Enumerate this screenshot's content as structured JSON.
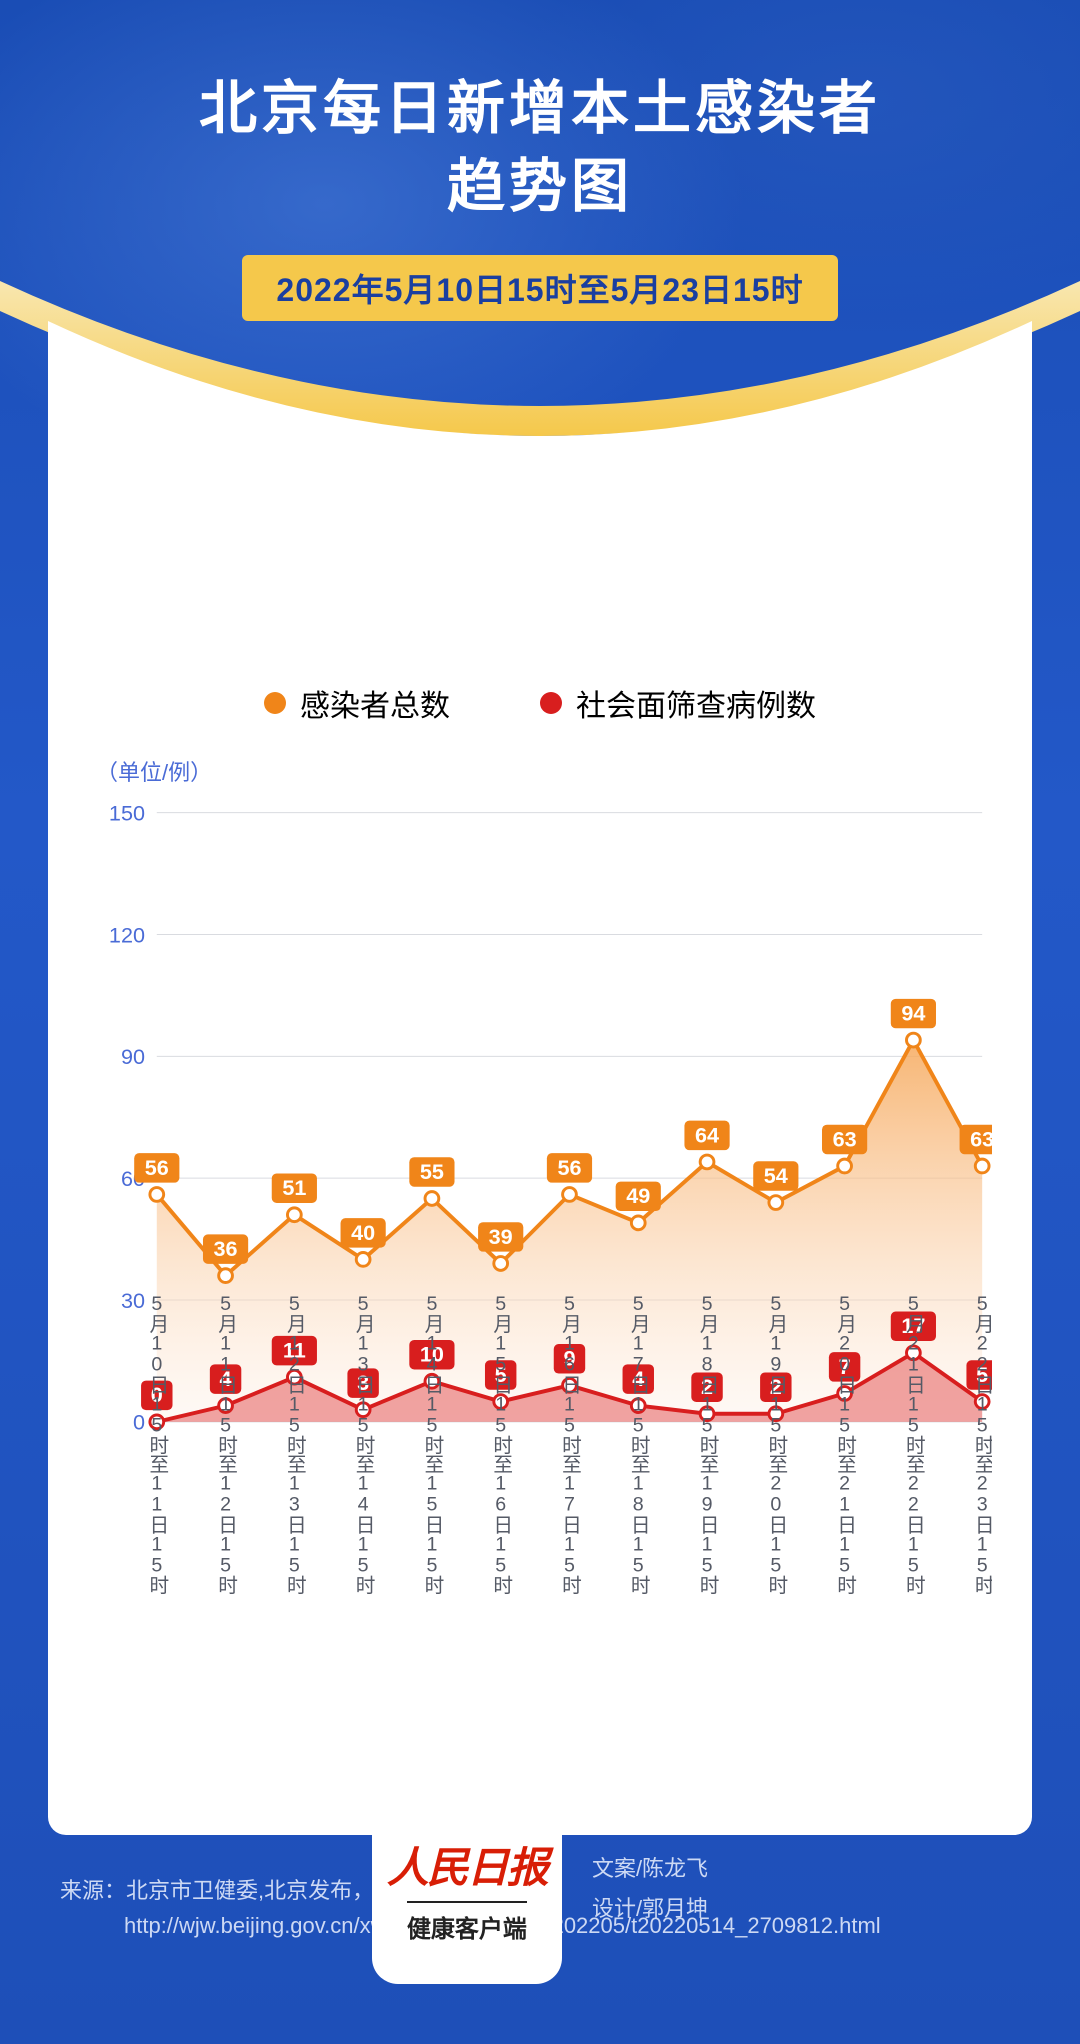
{
  "header": {
    "title_line1": "北京每日新增本土感染者",
    "title_line2": "趋势图",
    "date_range": "2022年5月10日15时至5月23日15时"
  },
  "colors": {
    "page_bg_top": "#1a4db5",
    "page_bg_bottom": "#1e4fb8",
    "arc_gold": "#f5c84b",
    "arc_gold_light": "#f8e7b0",
    "pill_bg": "#f5c84b",
    "pill_text": "#1a3fa0",
    "card_bg": "#ffffff",
    "grid": "#d9dbe0",
    "axis": "#555a66",
    "ylabel": "#4a6bd6",
    "unit": "#4a6bd6",
    "series1": "#f08519",
    "series1_fill_top": "#f6a85a",
    "series1_fill_bottom": "#fdece0",
    "series2": "#d81e1e",
    "series2_fill": "#e35b5b",
    "badge1": "#f08519",
    "badge2": "#d81e1e",
    "source_text": "#cdd9f4"
  },
  "chart": {
    "type": "area-line-dual",
    "unit_label": "（单位/例）",
    "ylim": [
      0,
      150
    ],
    "ytick_step": 30,
    "yticks": [
      0,
      30,
      60,
      90,
      120,
      150
    ],
    "categories": [
      "5月10日15时至11日15时",
      "5月11日15时至12日15时",
      "5月12日15时至13日15时",
      "5月13日15时至14日15时",
      "5月14日15时至15日15时",
      "5月15日15时至16日15时",
      "5月16日15时至17日15时",
      "5月17日15时至18日15时",
      "5月18日15时至19日15时",
      "5月19日15时至20日15时",
      "5月20日15时至21日15时",
      "5月21日15时至22日15时",
      "5月22日15时至23日15时"
    ],
    "series": [
      {
        "name": "感染者总数",
        "values": [
          56,
          36,
          51,
          40,
          55,
          39,
          56,
          49,
          64,
          54,
          63,
          94,
          63
        ]
      },
      {
        "name": "社会面筛查病例数",
        "values": [
          0,
          4,
          11,
          3,
          10,
          5,
          9,
          4,
          2,
          2,
          7,
          17,
          5
        ]
      }
    ],
    "marker_radius": 7,
    "line_width": 4,
    "badge_fontsize": 22,
    "axis_fontsize": 22,
    "xlabel_fontsize": 20
  },
  "source": {
    "prefix": "来源：",
    "text": "北京市卫健委,北京发布，2022-05-24，",
    "url": "http://wjw.beijing.gov.cn/xwzx_20031/rdxws/202205/t20220514_2709812.html"
  },
  "footer": {
    "app_name": "人民日报",
    "app_sub": "健康客户端",
    "credit1": "文案/陈龙飞",
    "credit2": "设计/郭月坤"
  }
}
